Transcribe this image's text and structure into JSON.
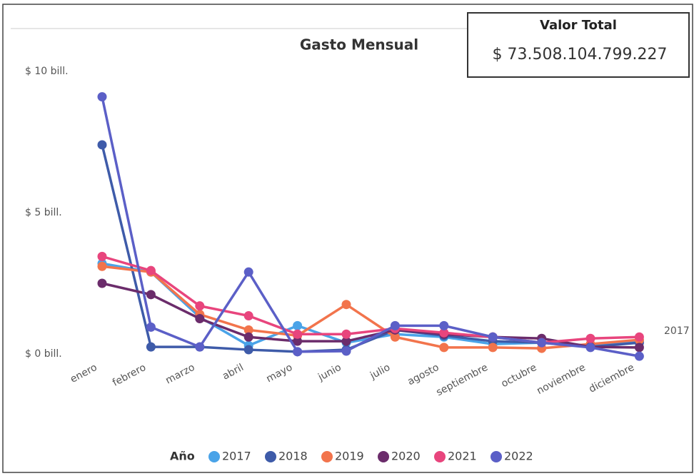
{
  "chart_data": {
    "type": "line",
    "title": "Gasto Mensual",
    "total_label": "Valor Total",
    "total_value": "$ 73.508.104.799.227",
    "categories": [
      "enero",
      "febrero",
      "marzo",
      "abril",
      "mayo",
      "junio",
      "julio",
      "agosto",
      "septiembre",
      "octubre",
      "noviembre",
      "diciembre"
    ],
    "ylim": [
      0,
      10
    ],
    "yticks": [
      {
        "value": 0,
        "label": "$ 0 bill."
      },
      {
        "value": 5,
        "label": "$ 5 bill."
      },
      {
        "value": 10,
        "label": "$ 10 bill."
      }
    ],
    "grid": false,
    "legend_title": "Año",
    "legend": "bottom",
    "series": [
      {
        "name": "2017",
        "color": "#4aa3e8",
        "values": [
          3.2,
          2.9,
          1.3,
          0.3,
          1.0,
          0.4,
          0.7,
          0.6,
          0.35,
          0.4,
          0.3,
          0.45
        ]
      },
      {
        "name": "2018",
        "color": "#3e5ba9",
        "values": [
          7.4,
          0.25,
          0.25,
          0.15,
          0.08,
          0.15,
          0.85,
          0.65,
          0.45,
          0.4,
          0.25,
          0.4
        ]
      },
      {
        "name": "2019",
        "color": "#f2744c",
        "values": [
          3.1,
          2.9,
          1.4,
          0.85,
          0.65,
          1.75,
          0.6,
          0.23,
          0.23,
          0.2,
          0.35,
          0.5
        ]
      },
      {
        "name": "2020",
        "color": "#6b2c6b",
        "values": [
          2.5,
          2.1,
          1.25,
          0.6,
          0.45,
          0.45,
          0.85,
          0.7,
          0.6,
          0.55,
          0.25,
          0.23
        ]
      },
      {
        "name": "2021",
        "color": "#e8457d",
        "values": [
          3.45,
          2.95,
          1.7,
          1.35,
          0.7,
          0.7,
          0.9,
          0.75,
          0.6,
          0.4,
          0.55,
          0.6
        ]
      },
      {
        "name": "2022",
        "color": "#5b5fc7",
        "values": [
          9.1,
          0.95,
          0.25,
          2.9,
          0.08,
          0.1,
          1.0,
          1.0,
          0.6,
          0.4,
          0.23,
          -0.08
        ]
      }
    ]
  }
}
